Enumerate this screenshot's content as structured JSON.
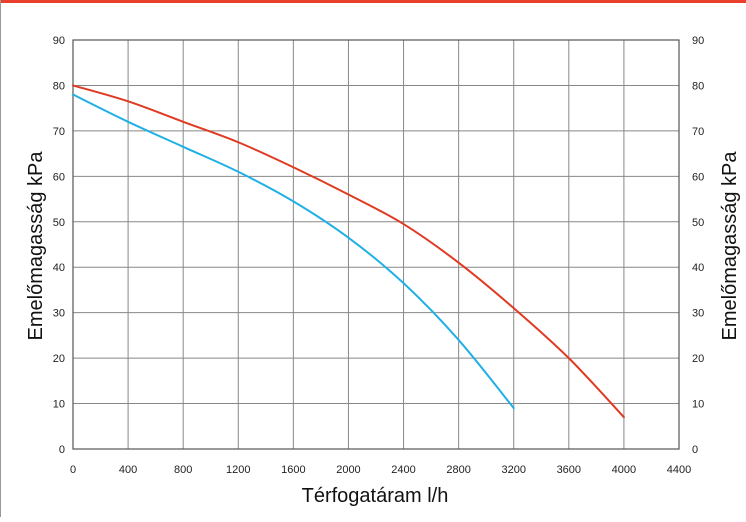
{
  "colors": {
    "top_bar": "#e8402a",
    "grid": "#888888",
    "frame": "#555555",
    "series_red": "#e03a22",
    "series_blue": "#1fb0e6"
  },
  "chart_data": {
    "type": "line",
    "xlabel": "Térfogatáram l/h",
    "ylabel": "Emelőmagasság kPa",
    "ylabel_right": "Emelőmagasság kPa",
    "xlim": [
      0,
      4400
    ],
    "ylim": [
      0,
      90
    ],
    "x_ticks": [
      "0",
      "400",
      "800",
      "1200",
      "1600",
      "2000",
      "2400",
      "2800",
      "3200",
      "3600",
      "4000",
      "4400"
    ],
    "y_ticks": [
      "0",
      "10",
      "20",
      "30",
      "40",
      "50",
      "60",
      "70",
      "80",
      "90"
    ],
    "y_ticks_right": [
      "0",
      "10",
      "20",
      "30",
      "40",
      "50",
      "60",
      "70",
      "80",
      "90"
    ],
    "grid": true,
    "legend": "none",
    "series": [
      {
        "color": "#e03a22",
        "x": [
          0,
          400,
          800,
          1200,
          1600,
          2000,
          2400,
          2800,
          3200,
          3600,
          4000
        ],
        "y": [
          80,
          76.5,
          72,
          67.5,
          62,
          56,
          49.5,
          41,
          31,
          20,
          7
        ]
      },
      {
        "color": "#1fb0e6",
        "x": [
          0,
          400,
          800,
          1200,
          1600,
          2000,
          2400,
          2800,
          3200
        ],
        "y": [
          78,
          72,
          66.5,
          61,
          54.5,
          46.5,
          36.5,
          24,
          9
        ]
      }
    ]
  }
}
